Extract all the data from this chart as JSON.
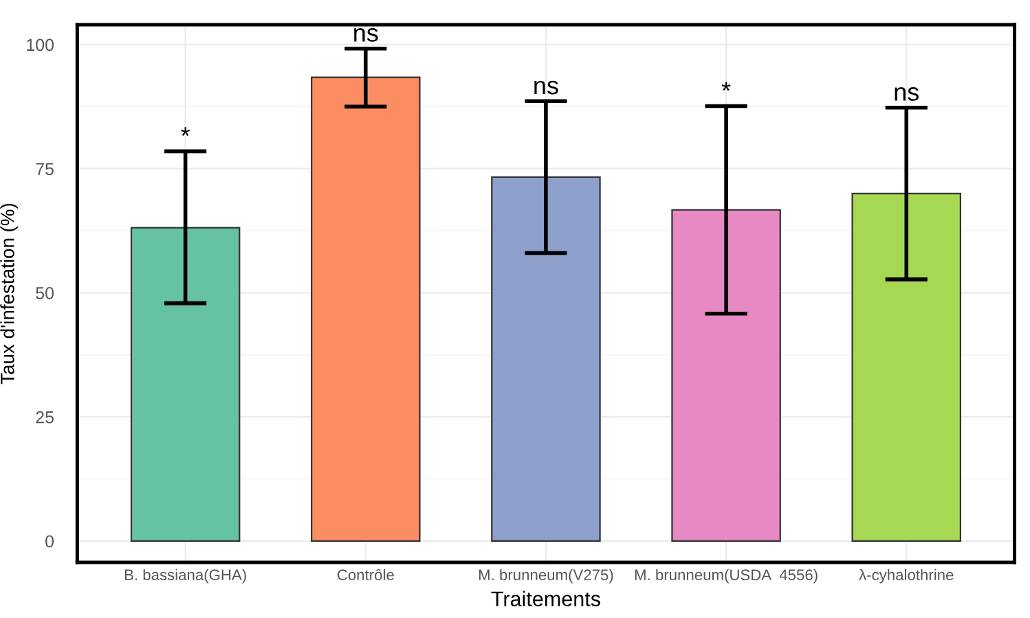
{
  "chart_data": {
    "type": "bar",
    "xlabel": "Traitements",
    "ylabel": "Taux d'infestation (%)",
    "categories": [
      "B. bassiana(GHA)",
      "Contrôle",
      "M. brunneum(V275)",
      "M. brunneum(USDA  4556)",
      "λ-cyhalothrine"
    ],
    "values": [
      63.1,
      93.4,
      73.3,
      66.7,
      70.0
    ],
    "colors": [
      "#66c2a5",
      "#fc8d62",
      "#8da0cb",
      "#e78ac3",
      "#a6d854"
    ],
    "errors": [
      [
        47.9,
        78.5
      ],
      [
        87.5,
        99.2
      ],
      [
        58.0,
        88.6
      ],
      [
        45.8,
        87.6
      ],
      [
        52.7,
        87.3
      ]
    ],
    "ylim": [
      -4.3,
      104
    ],
    "yticks": [
      0,
      25,
      50,
      75,
      100
    ],
    "grid": true,
    "annotations": [
      "*",
      "ns",
      "ns",
      "*",
      "ns"
    ]
  }
}
